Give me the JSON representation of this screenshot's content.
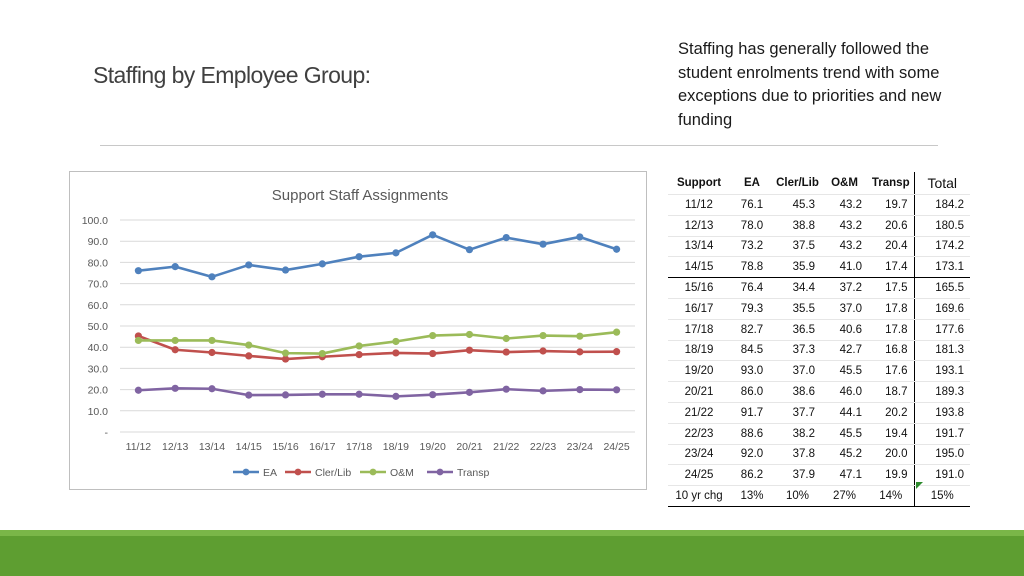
{
  "slide": {
    "title": "Staffing by Employee Group:",
    "note": "Staffing has generally followed the student enrolments trend with some exceptions due to priorities and new funding"
  },
  "colors": {
    "EA": "#4f81bd",
    "Cler/Lib": "#c0504d",
    "O&M": "#9bbb59",
    "Transp": "#8064a2",
    "footer": "#5e9e31"
  },
  "chart_data": {
    "type": "line",
    "title": "Support Staff Assignments",
    "categories": [
      "11/12",
      "12/13",
      "13/14",
      "14/15",
      "15/16",
      "16/17",
      "17/18",
      "18/19",
      "19/20",
      "20/21",
      "21/22",
      "22/23",
      "23/24",
      "24/25"
    ],
    "ylim": [
      0,
      100
    ],
    "yticks": [
      "-",
      "10.0",
      "20.0",
      "30.0",
      "40.0",
      "50.0",
      "60.0",
      "70.0",
      "80.0",
      "90.0",
      "100.0"
    ],
    "grid": true,
    "legend": "bottom",
    "series": [
      {
        "name": "EA",
        "values": [
          76.1,
          78.0,
          73.2,
          78.8,
          76.4,
          79.3,
          82.7,
          84.5,
          93.0,
          86.0,
          91.7,
          88.6,
          92.0,
          86.2
        ]
      },
      {
        "name": "Cler/Lib",
        "values": [
          45.3,
          38.8,
          37.5,
          35.9,
          34.4,
          35.5,
          36.5,
          37.3,
          37.0,
          38.6,
          37.7,
          38.2,
          37.8,
          37.9
        ]
      },
      {
        "name": "O&M",
        "values": [
          43.2,
          43.2,
          43.2,
          41.0,
          37.2,
          37.0,
          40.6,
          42.7,
          45.5,
          46.0,
          44.1,
          45.5,
          45.2,
          47.1
        ]
      },
      {
        "name": "Transp",
        "values": [
          19.7,
          20.6,
          20.4,
          17.4,
          17.5,
          17.8,
          17.8,
          16.8,
          17.6,
          18.7,
          20.2,
          19.4,
          20.0,
          19.9
        ]
      }
    ]
  },
  "table": {
    "headers": [
      "Support",
      "EA",
      "Cler/Lib",
      "O&M",
      "Transp",
      "Total"
    ],
    "rows": [
      [
        "11/12",
        "76.1",
        "45.3",
        "43.2",
        "19.7",
        "184.2"
      ],
      [
        "12/13",
        "78.0",
        "38.8",
        "43.2",
        "20.6",
        "180.5"
      ],
      [
        "13/14",
        "73.2",
        "37.5",
        "43.2",
        "20.4",
        "174.2"
      ],
      [
        "14/15",
        "78.8",
        "35.9",
        "41.0",
        "17.4",
        "173.1"
      ],
      [
        "15/16",
        "76.4",
        "34.4",
        "37.2",
        "17.5",
        "165.5"
      ],
      [
        "16/17",
        "79.3",
        "35.5",
        "37.0",
        "17.8",
        "169.6"
      ],
      [
        "17/18",
        "82.7",
        "36.5",
        "40.6",
        "17.8",
        "177.6"
      ],
      [
        "18/19",
        "84.5",
        "37.3",
        "42.7",
        "16.8",
        "181.3"
      ],
      [
        "19/20",
        "93.0",
        "37.0",
        "45.5",
        "17.6",
        "193.1"
      ],
      [
        "20/21",
        "86.0",
        "38.6",
        "46.0",
        "18.7",
        "189.3"
      ],
      [
        "21/22",
        "91.7",
        "37.7",
        "44.1",
        "20.2",
        "193.8"
      ],
      [
        "22/23",
        "88.6",
        "38.2",
        "45.5",
        "19.4",
        "191.7"
      ],
      [
        "23/24",
        "92.0",
        "37.8",
        "45.2",
        "20.0",
        "195.0"
      ],
      [
        "24/25",
        "86.2",
        "37.9",
        "47.1",
        "19.9",
        "191.0"
      ]
    ],
    "change_row": [
      "10 yr chg",
      "13%",
      "10%",
      "27%",
      "14%",
      "15%"
    ]
  }
}
